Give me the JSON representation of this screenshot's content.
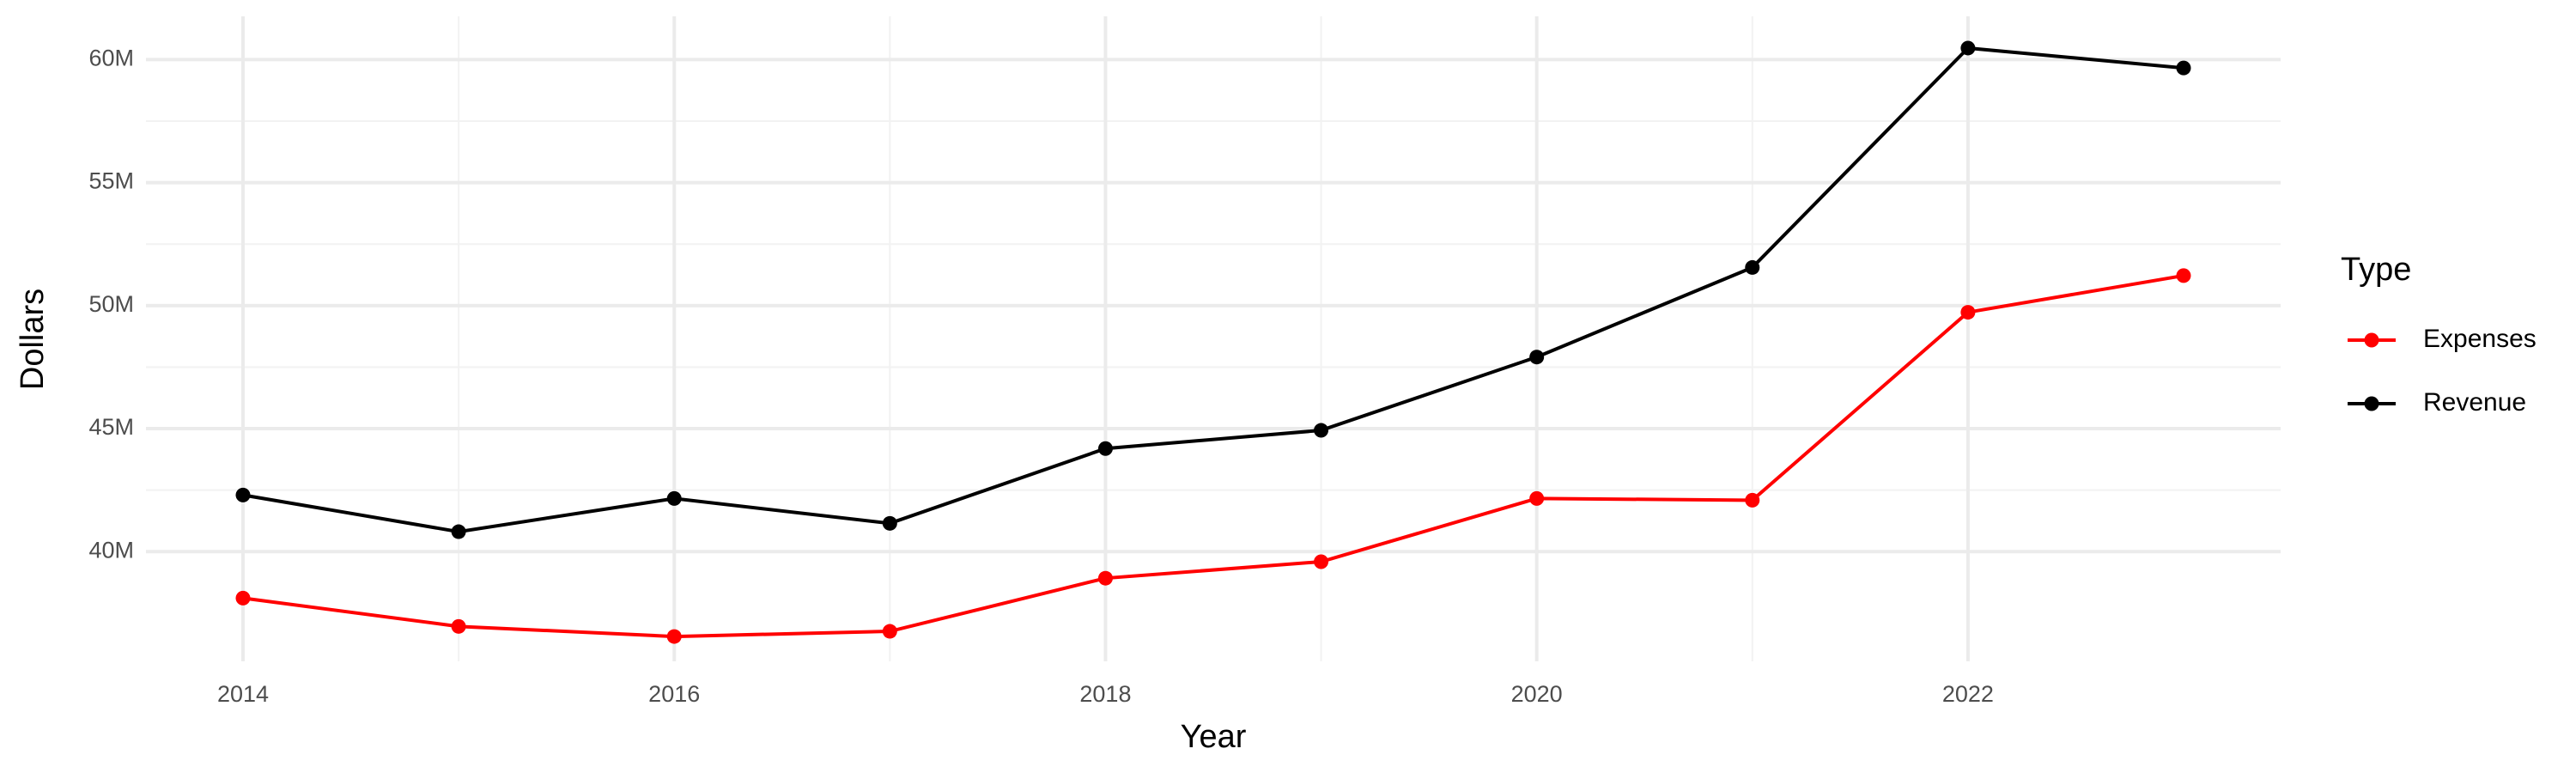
{
  "chart_data": {
    "type": "line",
    "x_label": "Year",
    "y_label": "Dollars",
    "legend_title": "Type",
    "x": [
      2014,
      2015,
      2016,
      2017,
      2018,
      2019,
      2020,
      2021,
      2022,
      2023
    ],
    "series": [
      {
        "name": "Expenses",
        "color": "#ff0000",
        "values": [
          38110000,
          36960000,
          36550000,
          36760000,
          38920000,
          39590000,
          42160000,
          42090000,
          49730000,
          51220000
        ]
      },
      {
        "name": "Revenue",
        "color": "#000000",
        "values": [
          42300000,
          40810000,
          42160000,
          41150000,
          44190000,
          44930000,
          47910000,
          51550000,
          60470000,
          59660000
        ]
      }
    ],
    "xlim": [
      2013.55,
      2023.45
    ],
    "xticks": [
      2014,
      2016,
      2018,
      2020,
      2022
    ],
    "ylim": [
      35540000,
      61760000
    ],
    "yticks": [
      {
        "value": 40000000,
        "label": "40M"
      },
      {
        "value": 45000000,
        "label": "45M"
      },
      {
        "value": 50000000,
        "label": "50M"
      },
      {
        "value": 55000000,
        "label": "55M"
      },
      {
        "value": 60000000,
        "label": "60M"
      }
    ],
    "grid": true,
    "legend": "right"
  }
}
